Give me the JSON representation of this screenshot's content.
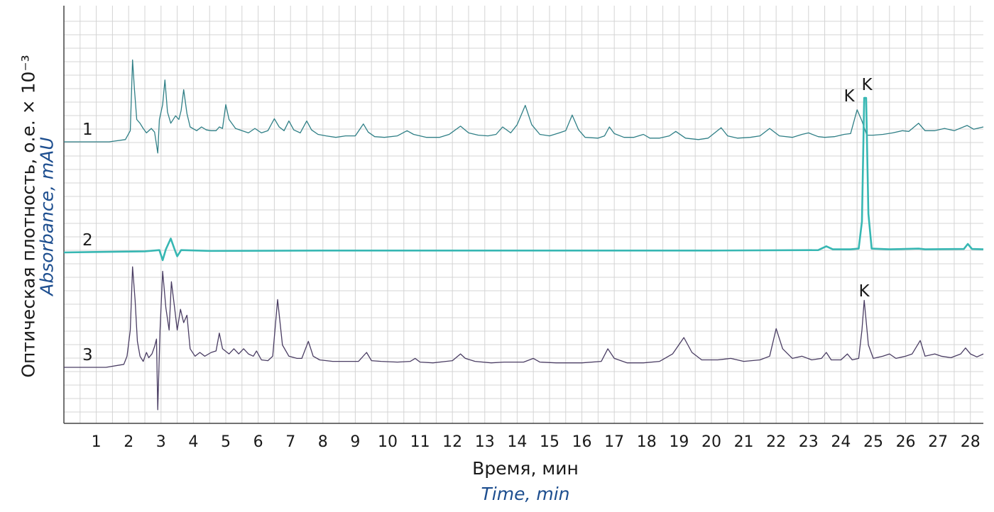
{
  "chart_data": {
    "type": "line",
    "ylabel": "Оптическая плотность, о.е. × 10⁻³",
    "ylabel_en": "Absorbance, mAU",
    "xlabel": "Время, мин",
    "xlabel_en": "Time, min",
    "xlim": [
      0,
      28.4
    ],
    "x_ticks": [
      "1",
      "2",
      "3",
      "4",
      "5",
      "6",
      "7",
      "8",
      "9",
      "10",
      "11",
      "12",
      "13",
      "14",
      "15",
      "16",
      "17",
      "18",
      "19",
      "20",
      "21",
      "22",
      "23",
      "24",
      "25",
      "26",
      "27",
      "28"
    ],
    "grid": true,
    "colors": {
      "trace1": "#2f7f86",
      "trace2": "#37b7b3",
      "trace3": "#4a3d63",
      "grid": "#d4d4d4",
      "axis": "#444444"
    },
    "series": [
      {
        "name": "1",
        "baseline": 0,
        "points": [
          [
            0,
            0
          ],
          [
            1.4,
            0
          ],
          [
            1.9,
            0.3
          ],
          [
            2.05,
            1.5
          ],
          [
            2.12,
            11
          ],
          [
            2.18,
            7
          ],
          [
            2.25,
            3
          ],
          [
            2.35,
            2.5
          ],
          [
            2.45,
            1.8
          ],
          [
            2.55,
            1.2
          ],
          [
            2.7,
            1.8
          ],
          [
            2.8,
            1.3
          ],
          [
            2.9,
            -1.5
          ],
          [
            2.95,
            3
          ],
          [
            3.05,
            5
          ],
          [
            3.12,
            8.3
          ],
          [
            3.2,
            4
          ],
          [
            3.3,
            2.5
          ],
          [
            3.45,
            3.5
          ],
          [
            3.55,
            3
          ],
          [
            3.62,
            4.2
          ],
          [
            3.7,
            7
          ],
          [
            3.8,
            3.8
          ],
          [
            3.9,
            2
          ],
          [
            4.1,
            1.5
          ],
          [
            4.25,
            2
          ],
          [
            4.4,
            1.6
          ],
          [
            4.55,
            1.5
          ],
          [
            4.7,
            1.5
          ],
          [
            4.8,
            2
          ],
          [
            4.9,
            1.8
          ],
          [
            5.0,
            5
          ],
          [
            5.1,
            3
          ],
          [
            5.3,
            1.8
          ],
          [
            5.5,
            1.5
          ],
          [
            5.7,
            1.2
          ],
          [
            5.9,
            1.8
          ],
          [
            6.1,
            1.2
          ],
          [
            6.3,
            1.5
          ],
          [
            6.5,
            3.1
          ],
          [
            6.65,
            2
          ],
          [
            6.8,
            1.5
          ],
          [
            6.95,
            2.8
          ],
          [
            7.1,
            1.6
          ],
          [
            7.3,
            1.2
          ],
          [
            7.5,
            2.8
          ],
          [
            7.65,
            1.6
          ],
          [
            7.85,
            1
          ],
          [
            8.1,
            0.8
          ],
          [
            8.4,
            0.6
          ],
          [
            8.7,
            0.8
          ],
          [
            9.0,
            0.8
          ],
          [
            9.25,
            2.4
          ],
          [
            9.4,
            1.3
          ],
          [
            9.6,
            0.7
          ],
          [
            9.9,
            0.6
          ],
          [
            10.3,
            0.8
          ],
          [
            10.6,
            1.5
          ],
          [
            10.8,
            1
          ],
          [
            11.2,
            0.6
          ],
          [
            11.6,
            0.6
          ],
          [
            11.9,
            1
          ],
          [
            12.25,
            2.1
          ],
          [
            12.5,
            1.2
          ],
          [
            12.8,
            0.9
          ],
          [
            13.1,
            0.8
          ],
          [
            13.35,
            1
          ],
          [
            13.55,
            2
          ],
          [
            13.8,
            1.2
          ],
          [
            14.0,
            2.3
          ],
          [
            14.25,
            4.9
          ],
          [
            14.45,
            2.3
          ],
          [
            14.7,
            1
          ],
          [
            15.0,
            0.8
          ],
          [
            15.3,
            1.2
          ],
          [
            15.5,
            1.5
          ],
          [
            15.7,
            3.6
          ],
          [
            15.9,
            1.6
          ],
          [
            16.1,
            0.6
          ],
          [
            16.5,
            0.5
          ],
          [
            16.7,
            0.8
          ],
          [
            16.85,
            2
          ],
          [
            17.0,
            1.1
          ],
          [
            17.3,
            0.6
          ],
          [
            17.6,
            0.6
          ],
          [
            17.9,
            1
          ],
          [
            18.1,
            0.5
          ],
          [
            18.4,
            0.5
          ],
          [
            18.7,
            0.8
          ],
          [
            18.9,
            1.4
          ],
          [
            19.2,
            0.5
          ],
          [
            19.6,
            0.3
          ],
          [
            19.9,
            0.5
          ],
          [
            20.3,
            1.9
          ],
          [
            20.5,
            0.8
          ],
          [
            20.8,
            0.5
          ],
          [
            21.2,
            0.6
          ],
          [
            21.5,
            0.8
          ],
          [
            21.8,
            1.8
          ],
          [
            22.1,
            0.8
          ],
          [
            22.5,
            0.6
          ],
          [
            22.8,
            1
          ],
          [
            23.0,
            1.2
          ],
          [
            23.3,
            0.7
          ],
          [
            23.5,
            0.6
          ],
          [
            23.8,
            0.7
          ],
          [
            24.1,
            1
          ],
          [
            24.3,
            1.1
          ],
          [
            24.5,
            4.3
          ],
          [
            24.65,
            2.8
          ],
          [
            24.8,
            0.9
          ],
          [
            25.0,
            0.9
          ],
          [
            25.3,
            1
          ],
          [
            25.6,
            1.2
          ],
          [
            25.9,
            1.5
          ],
          [
            26.1,
            1.4
          ],
          [
            26.4,
            2.5
          ],
          [
            26.6,
            1.5
          ],
          [
            26.9,
            1.5
          ],
          [
            27.2,
            1.8
          ],
          [
            27.5,
            1.5
          ],
          [
            27.9,
            2.2
          ],
          [
            28.1,
            1.7
          ],
          [
            28.4,
            2
          ]
        ]
      },
      {
        "name": "2",
        "baseline": 0,
        "points": [
          [
            0,
            0
          ],
          [
            2.5,
            0.15
          ],
          [
            2.95,
            0.3
          ],
          [
            3.05,
            -1
          ],
          [
            3.15,
            0.4
          ],
          [
            3.3,
            1.8
          ],
          [
            3.42,
            0.4
          ],
          [
            3.5,
            -0.5
          ],
          [
            3.62,
            0.3
          ],
          [
            4.5,
            0.2
          ],
          [
            8,
            0.25
          ],
          [
            12,
            0.25
          ],
          [
            16,
            0.25
          ],
          [
            20,
            0.25
          ],
          [
            23.3,
            0.3
          ],
          [
            23.55,
            0.8
          ],
          [
            23.75,
            0.4
          ],
          [
            24.3,
            0.4
          ],
          [
            24.55,
            0.5
          ],
          [
            24.65,
            4
          ],
          [
            24.72,
            20
          ],
          [
            24.78,
            20
          ],
          [
            24.85,
            5
          ],
          [
            24.95,
            0.5
          ],
          [
            25.5,
            0.4
          ],
          [
            26.4,
            0.5
          ],
          [
            26.6,
            0.4
          ],
          [
            27.8,
            0.45
          ],
          [
            27.92,
            1.1
          ],
          [
            28.05,
            0.45
          ],
          [
            28.4,
            0.4
          ]
        ]
      },
      {
        "name": "3",
        "baseline": 0,
        "points": [
          [
            0,
            0
          ],
          [
            1.3,
            0
          ],
          [
            1.85,
            0.4
          ],
          [
            1.95,
            1.5
          ],
          [
            2.05,
            5
          ],
          [
            2.12,
            13.5
          ],
          [
            2.2,
            9
          ],
          [
            2.27,
            3.5
          ],
          [
            2.35,
            1.5
          ],
          [
            2.45,
            0.8
          ],
          [
            2.55,
            2
          ],
          [
            2.62,
            1.3
          ],
          [
            2.72,
            1.8
          ],
          [
            2.8,
            2.8
          ],
          [
            2.86,
            3.8
          ],
          [
            2.9,
            -5.7
          ],
          [
            2.97,
            5
          ],
          [
            3.05,
            12.9
          ],
          [
            3.15,
            8
          ],
          [
            3.25,
            5
          ],
          [
            3.32,
            11.5
          ],
          [
            3.42,
            8
          ],
          [
            3.5,
            5
          ],
          [
            3.6,
            7.8
          ],
          [
            3.7,
            6
          ],
          [
            3.8,
            7
          ],
          [
            3.9,
            2.5
          ],
          [
            4.05,
            1.5
          ],
          [
            4.2,
            2
          ],
          [
            4.35,
            1.5
          ],
          [
            4.55,
            2
          ],
          [
            4.7,
            2.2
          ],
          [
            4.8,
            4.6
          ],
          [
            4.9,
            2.5
          ],
          [
            5.1,
            1.8
          ],
          [
            5.25,
            2.5
          ],
          [
            5.4,
            1.8
          ],
          [
            5.55,
            2.5
          ],
          [
            5.7,
            1.8
          ],
          [
            5.85,
            1.5
          ],
          [
            5.95,
            2.2
          ],
          [
            6.1,
            1
          ],
          [
            6.3,
            0.9
          ],
          [
            6.45,
            1.5
          ],
          [
            6.6,
            9.1
          ],
          [
            6.75,
            3
          ],
          [
            6.95,
            1.5
          ],
          [
            7.2,
            1.2
          ],
          [
            7.35,
            1.2
          ],
          [
            7.55,
            3.5
          ],
          [
            7.7,
            1.5
          ],
          [
            7.9,
            1
          ],
          [
            8.3,
            0.8
          ],
          [
            8.8,
            0.8
          ],
          [
            9.1,
            0.8
          ],
          [
            9.35,
            2
          ],
          [
            9.5,
            0.9
          ],
          [
            9.8,
            0.8
          ],
          [
            10.3,
            0.7
          ],
          [
            10.7,
            0.8
          ],
          [
            10.85,
            1.2
          ],
          [
            11.0,
            0.7
          ],
          [
            11.4,
            0.6
          ],
          [
            11.8,
            0.8
          ],
          [
            12.0,
            0.9
          ],
          [
            12.25,
            1.8
          ],
          [
            12.4,
            1.2
          ],
          [
            12.7,
            0.8
          ],
          [
            13.2,
            0.6
          ],
          [
            13.6,
            0.7
          ],
          [
            14.2,
            0.7
          ],
          [
            14.5,
            1.2
          ],
          [
            14.7,
            0.7
          ],
          [
            15.2,
            0.6
          ],
          [
            15.6,
            0.6
          ],
          [
            16.0,
            0.6
          ],
          [
            16.6,
            0.8
          ],
          [
            16.8,
            2.5
          ],
          [
            17.0,
            1.2
          ],
          [
            17.4,
            0.6
          ],
          [
            17.9,
            0.6
          ],
          [
            18.4,
            0.8
          ],
          [
            18.8,
            1.8
          ],
          [
            19.15,
            4
          ],
          [
            19.4,
            2
          ],
          [
            19.7,
            1
          ],
          [
            20.2,
            1
          ],
          [
            20.6,
            1.2
          ],
          [
            21.0,
            0.8
          ],
          [
            21.5,
            1
          ],
          [
            21.8,
            1.5
          ],
          [
            22.0,
            5.2
          ],
          [
            22.2,
            2.5
          ],
          [
            22.5,
            1.2
          ],
          [
            22.8,
            1.5
          ],
          [
            23.1,
            1
          ],
          [
            23.4,
            1.2
          ],
          [
            23.55,
            2
          ],
          [
            23.7,
            1
          ],
          [
            24.0,
            1
          ],
          [
            24.2,
            1.8
          ],
          [
            24.35,
            1
          ],
          [
            24.55,
            1.2
          ],
          [
            24.65,
            5
          ],
          [
            24.72,
            9
          ],
          [
            24.85,
            3
          ],
          [
            25.0,
            1.2
          ],
          [
            25.3,
            1.5
          ],
          [
            25.5,
            1.8
          ],
          [
            25.7,
            1.2
          ],
          [
            26.0,
            1.5
          ],
          [
            26.2,
            1.8
          ],
          [
            26.45,
            3.6
          ],
          [
            26.6,
            1.5
          ],
          [
            26.9,
            1.8
          ],
          [
            27.1,
            1.5
          ],
          [
            27.4,
            1.3
          ],
          [
            27.7,
            1.8
          ],
          [
            27.85,
            2.6
          ],
          [
            28.0,
            1.8
          ],
          [
            28.2,
            1.4
          ],
          [
            28.4,
            1.8
          ]
        ]
      }
    ],
    "annotations": [
      {
        "text": "K",
        "x": 24.5,
        "series": "1"
      },
      {
        "text": "K",
        "x": 24.8,
        "series": "1"
      },
      {
        "text": "K",
        "x": 24.75,
        "series": "3"
      }
    ]
  }
}
